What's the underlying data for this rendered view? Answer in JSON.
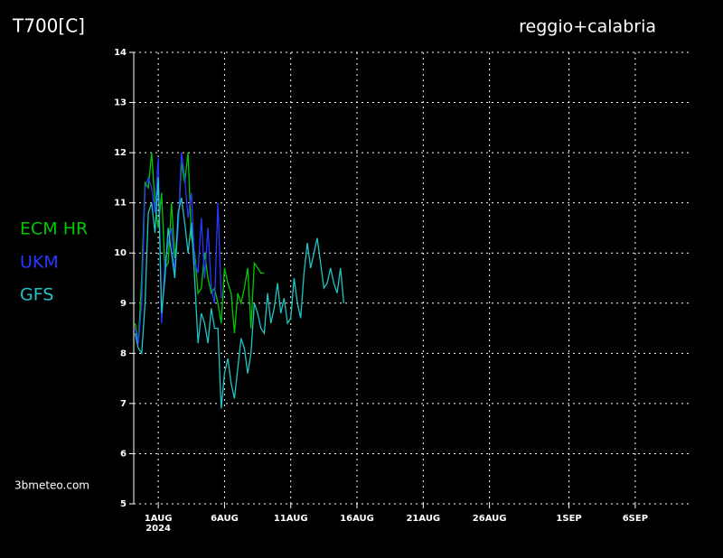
{
  "chart_data": {
    "type": "line",
    "title": "T700[C]",
    "subtitle": "reggio+calabria",
    "source": "3bmeteo.com",
    "xtick_year": "2024",
    "x": [
      -0.75,
      -0.5,
      -0.25,
      0,
      0.25,
      0.5,
      0.75,
      1,
      1.25,
      1.5,
      1.75,
      2,
      2.25,
      2.5,
      2.75,
      3,
      3.25,
      3.5,
      3.75,
      4,
      4.25,
      4.5,
      4.75,
      5,
      5.25,
      5.5,
      5.75,
      6,
      6.25,
      6.5,
      6.75,
      7,
      7.25,
      7.5,
      7.75,
      8,
      8.25,
      8.5,
      8.75,
      9,
      9.25,
      9.5,
      9.75,
      10,
      10.25,
      10.5,
      10.75,
      11,
      11.25,
      11.5,
      11.75,
      12,
      12.25,
      12.5,
      12.75,
      13,
      13.25,
      13.5,
      13.75,
      14,
      14.25,
      14.5,
      14.75,
      15
    ],
    "xlim": [
      -0.85,
      41.1
    ],
    "xticks": [
      {
        "value": 1,
        "label": "1AUG"
      },
      {
        "value": 6,
        "label": "6AUG"
      },
      {
        "value": 11,
        "label": "11AUG"
      },
      {
        "value": 16,
        "label": "16AUG"
      },
      {
        "value": 21,
        "label": "21AUG"
      },
      {
        "value": 26,
        "label": "26AUG"
      },
      {
        "value": 32,
        "label": "1SEP"
      },
      {
        "value": 37,
        "label": "6SEP"
      }
    ],
    "ylim": [
      5,
      14
    ],
    "yticks": [
      5,
      6,
      7,
      8,
      9,
      10,
      11,
      12,
      13,
      14
    ],
    "grid": true,
    "series": [
      {
        "name": "ECM HR",
        "color": "#00c800",
        "values": [
          8.6,
          8.2,
          9.5,
          11.4,
          11.3,
          12.0,
          11.0,
          10.5,
          11.2,
          9.7,
          9.8,
          11.0,
          9.9,
          10.5,
          11.8,
          11.4,
          12.0,
          10.3,
          10.0,
          9.2,
          9.3,
          10.0,
          9.5,
          9.2,
          9.3,
          9.0,
          8.6,
          9.7,
          9.4,
          9.2,
          8.4,
          9.2,
          9.0,
          9.3,
          9.7,
          8.5,
          9.8,
          9.7,
          9.6,
          9.6,
          null,
          null,
          null,
          null,
          null,
          null,
          null,
          null,
          null,
          null,
          null,
          null,
          null,
          null,
          null,
          null,
          null,
          null,
          null,
          null,
          null,
          null,
          null,
          null
        ]
      },
      {
        "name": "UKM",
        "color": "#2838ff",
        "values": [
          8.5,
          8.2,
          9.0,
          11.3,
          11.5,
          11.3,
          10.8,
          11.9,
          8.6,
          9.8,
          10.2,
          10.5,
          9.6,
          10.5,
          12.0,
          11.5,
          10.7,
          11.2,
          9.8,
          9.6,
          10.7,
          9.5,
          10.5,
          9.3,
          9.0,
          11.0,
          9.1,
          null,
          null,
          null,
          null,
          null,
          null,
          null,
          null,
          null,
          null,
          null,
          null,
          null,
          null,
          null,
          null,
          null,
          null,
          null,
          null,
          null,
          null,
          null,
          null,
          null,
          null,
          null,
          null,
          null,
          null,
          null,
          null,
          null,
          null,
          null,
          null,
          null
        ]
      },
      {
        "name": "GFS",
        "color": "#20c4c4",
        "values": [
          8.4,
          8.1,
          8.0,
          9.0,
          10.8,
          11.0,
          10.4,
          11.5,
          8.8,
          9.5,
          10.5,
          10.0,
          9.5,
          10.8,
          11.1,
          10.6,
          10.0,
          10.6,
          9.5,
          8.2,
          8.8,
          8.6,
          8.2,
          8.9,
          8.5,
          8.5,
          6.9,
          7.6,
          7.9,
          7.4,
          7.1,
          7.7,
          8.3,
          8.1,
          7.6,
          8.0,
          9.0,
          8.8,
          8.5,
          8.4,
          9.2,
          8.6,
          8.9,
          9.4,
          8.8,
          9.1,
          8.6,
          8.7,
          9.5,
          9.0,
          8.7,
          9.6,
          10.2,
          9.7,
          10.0,
          10.3,
          9.8,
          9.3,
          9.4,
          9.7,
          9.4,
          9.2,
          9.7,
          9.0
        ]
      }
    ]
  }
}
